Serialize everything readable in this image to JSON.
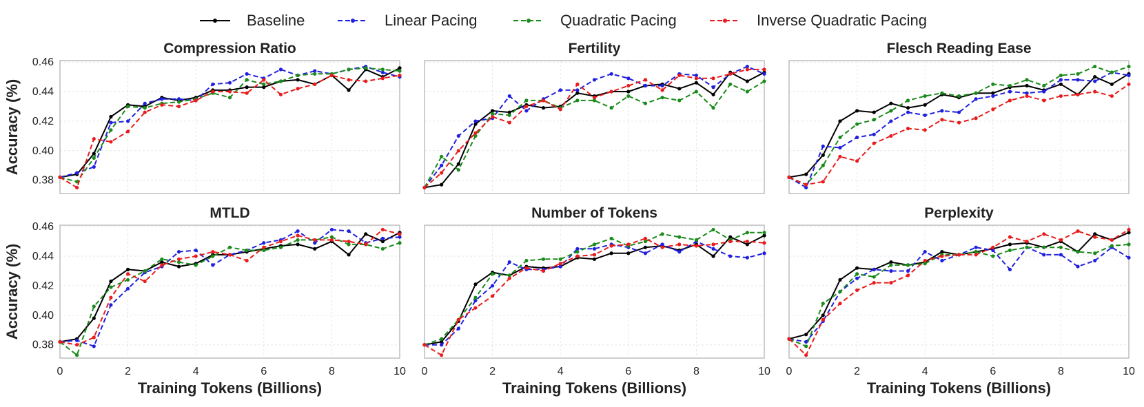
{
  "chart_data": {
    "type": "line",
    "legend": {
      "placement": "top-center",
      "entries": [
        "Baseline",
        "Linear Pacing",
        "Quadratic Pacing",
        "Inverse Quadratic Pacing"
      ]
    },
    "series_styles": [
      {
        "name": "Baseline",
        "color": "#000000",
        "dash": "solid"
      },
      {
        "name": "Linear Pacing",
        "color": "#1f1fe0",
        "dash": "dashed"
      },
      {
        "name": "Quadratic Pacing",
        "color": "#1a8a1a",
        "dash": "dashed"
      },
      {
        "name": "Inverse Quadratic Pacing",
        "color": "#e81c1c",
        "dash": "dashed"
      }
    ],
    "xlabel": "Training Tokens (Billions)",
    "ylabel": "Accuracy (%)",
    "xlim": [
      0,
      10
    ],
    "ylim": [
      0.371,
      0.461
    ],
    "xticks": [
      "0",
      "2",
      "4",
      "6",
      "8",
      "10"
    ],
    "yticks": [
      "0.38",
      "0.40",
      "0.42",
      "0.44",
      "0.46"
    ],
    "grid": true,
    "x": [
      0,
      0.5,
      1,
      1.5,
      2,
      2.5,
      3,
      3.5,
      4,
      4.5,
      5,
      5.5,
      6,
      6.5,
      7,
      7.5,
      8,
      8.5,
      9,
      9.5,
      10
    ],
    "panels": [
      {
        "title": "Compression Ratio",
        "series": [
          {
            "name": "Baseline",
            "values": [
              0.382,
              0.384,
              0.398,
              0.423,
              0.431,
              0.43,
              0.436,
              0.434,
              0.436,
              0.441,
              0.441,
              0.443,
              0.443,
              0.447,
              0.448,
              0.445,
              0.451,
              0.441,
              0.455,
              0.45,
              0.456
            ]
          },
          {
            "name": "Linear Pacing",
            "values": [
              0.382,
              0.385,
              0.389,
              0.419,
              0.42,
              0.432,
              0.435,
              0.435,
              0.434,
              0.445,
              0.446,
              0.452,
              0.449,
              0.455,
              0.451,
              0.454,
              0.452,
              0.455,
              0.457,
              0.453,
              0.45
            ]
          },
          {
            "name": "Quadratic Pacing",
            "values": [
              0.382,
              0.379,
              0.395,
              0.414,
              0.43,
              0.429,
              0.432,
              0.433,
              0.435,
              0.439,
              0.436,
              0.448,
              0.445,
              0.447,
              0.451,
              0.452,
              0.452,
              0.455,
              0.456,
              0.455,
              0.454
            ]
          },
          {
            "name": "Inverse Quadratic Pacing",
            "values": [
              0.382,
              0.375,
              0.408,
              0.406,
              0.413,
              0.426,
              0.431,
              0.43,
              0.434,
              0.44,
              0.44,
              0.439,
              0.448,
              0.438,
              0.442,
              0.445,
              0.451,
              0.448,
              0.447,
              0.449,
              0.451
            ]
          }
        ]
      },
      {
        "title": "Fertility",
        "series": [
          {
            "name": "Baseline",
            "values": [
              0.375,
              0.377,
              0.391,
              0.418,
              0.427,
              0.426,
              0.431,
              0.429,
              0.43,
              0.439,
              0.437,
              0.44,
              0.44,
              0.444,
              0.445,
              0.442,
              0.446,
              0.438,
              0.453,
              0.447,
              0.453
            ]
          },
          {
            "name": "Linear Pacing",
            "values": [
              0.375,
              0.39,
              0.41,
              0.42,
              0.422,
              0.437,
              0.427,
              0.435,
              0.441,
              0.441,
              0.448,
              0.452,
              0.449,
              0.444,
              0.444,
              0.452,
              0.451,
              0.443,
              0.452,
              0.457,
              0.452
            ]
          },
          {
            "name": "Quadratic Pacing",
            "values": [
              0.375,
              0.396,
              0.387,
              0.41,
              0.425,
              0.424,
              0.434,
              0.434,
              0.429,
              0.434,
              0.434,
              0.429,
              0.437,
              0.432,
              0.436,
              0.434,
              0.44,
              0.429,
              0.445,
              0.44,
              0.447
            ]
          },
          {
            "name": "Inverse Quadratic Pacing",
            "values": [
              0.375,
              0.385,
              0.4,
              0.412,
              0.423,
              0.419,
              0.43,
              0.434,
              0.428,
              0.445,
              0.436,
              0.44,
              0.444,
              0.448,
              0.441,
              0.451,
              0.449,
              0.449,
              0.452,
              0.455,
              0.455
            ]
          }
        ]
      },
      {
        "title": "Flesch Reading Ease",
        "series": [
          {
            "name": "Baseline",
            "values": [
              0.382,
              0.384,
              0.397,
              0.42,
              0.427,
              0.426,
              0.432,
              0.429,
              0.431,
              0.438,
              0.436,
              0.439,
              0.439,
              0.443,
              0.444,
              0.441,
              0.445,
              0.438,
              0.45,
              0.445,
              0.452
            ]
          },
          {
            "name": "Linear Pacing",
            "values": [
              0.382,
              0.375,
              0.403,
              0.402,
              0.409,
              0.411,
              0.42,
              0.426,
              0.424,
              0.427,
              0.426,
              0.435,
              0.437,
              0.44,
              0.439,
              0.44,
              0.448,
              0.448,
              0.447,
              0.453,
              0.451
            ]
          },
          {
            "name": "Quadratic Pacing",
            "values": [
              0.382,
              0.377,
              0.39,
              0.409,
              0.418,
              0.421,
              0.427,
              0.434,
              0.437,
              0.439,
              0.437,
              0.439,
              0.445,
              0.444,
              0.448,
              0.444,
              0.451,
              0.452,
              0.457,
              0.453,
              0.457
            ]
          },
          {
            "name": "Inverse Quadratic Pacing",
            "values": [
              0.382,
              0.377,
              0.379,
              0.396,
              0.393,
              0.405,
              0.41,
              0.415,
              0.414,
              0.421,
              0.419,
              0.422,
              0.428,
              0.434,
              0.437,
              0.434,
              0.437,
              0.438,
              0.44,
              0.437,
              0.445
            ]
          }
        ]
      },
      {
        "title": "MTLD",
        "series": [
          {
            "name": "Baseline",
            "values": [
              0.382,
              0.384,
              0.398,
              0.423,
              0.431,
              0.43,
              0.436,
              0.433,
              0.435,
              0.441,
              0.441,
              0.443,
              0.445,
              0.447,
              0.448,
              0.445,
              0.45,
              0.441,
              0.455,
              0.45,
              0.456
            ]
          },
          {
            "name": "Linear Pacing",
            "values": [
              0.382,
              0.383,
              0.379,
              0.407,
              0.418,
              0.429,
              0.433,
              0.443,
              0.444,
              0.434,
              0.441,
              0.444,
              0.449,
              0.451,
              0.457,
              0.449,
              0.458,
              0.457,
              0.449,
              0.452,
              0.453
            ]
          },
          {
            "name": "Quadratic Pacing",
            "values": [
              0.382,
              0.373,
              0.406,
              0.419,
              0.424,
              0.43,
              0.438,
              0.436,
              0.434,
              0.44,
              0.446,
              0.444,
              0.444,
              0.446,
              0.451,
              0.451,
              0.453,
              0.448,
              0.448,
              0.445,
              0.449
            ]
          },
          {
            "name": "Inverse Quadratic Pacing",
            "values": [
              0.382,
              0.38,
              0.385,
              0.412,
              0.428,
              0.423,
              0.434,
              0.438,
              0.44,
              0.443,
              0.441,
              0.437,
              0.446,
              0.45,
              0.454,
              0.451,
              0.451,
              0.45,
              0.448,
              0.458,
              0.455
            ]
          }
        ]
      },
      {
        "title": "Number of Tokens",
        "series": [
          {
            "name": "Baseline",
            "values": [
              0.38,
              0.382,
              0.396,
              0.421,
              0.429,
              0.427,
              0.433,
              0.432,
              0.433,
              0.439,
              0.438,
              0.442,
              0.442,
              0.446,
              0.447,
              0.444,
              0.448,
              0.44,
              0.453,
              0.448,
              0.454
            ]
          },
          {
            "name": "Linear Pacing",
            "values": [
              0.38,
              0.38,
              0.391,
              0.41,
              0.42,
              0.436,
              0.431,
              0.431,
              0.433,
              0.445,
              0.445,
              0.448,
              0.446,
              0.442,
              0.448,
              0.443,
              0.45,
              0.445,
              0.44,
              0.439,
              0.442
            ]
          },
          {
            "name": "Quadratic Pacing",
            "values": [
              0.38,
              0.384,
              0.397,
              0.412,
              0.428,
              0.427,
              0.437,
              0.438,
              0.438,
              0.443,
              0.448,
              0.452,
              0.447,
              0.45,
              0.455,
              0.453,
              0.451,
              0.458,
              0.451,
              0.456,
              0.456
            ]
          },
          {
            "name": "Inverse Quadratic Pacing",
            "values": [
              0.38,
              0.373,
              0.397,
              0.405,
              0.413,
              0.425,
              0.432,
              0.43,
              0.435,
              0.44,
              0.441,
              0.447,
              0.448,
              0.452,
              0.446,
              0.448,
              0.447,
              0.448,
              0.45,
              0.45,
              0.449
            ]
          }
        ]
      },
      {
        "title": "Perplexity",
        "series": [
          {
            "name": "Baseline",
            "values": [
              0.384,
              0.387,
              0.4,
              0.424,
              0.432,
              0.431,
              0.436,
              0.434,
              0.436,
              0.443,
              0.441,
              0.443,
              0.445,
              0.448,
              0.449,
              0.446,
              0.45,
              0.443,
              0.455,
              0.451,
              0.456
            ]
          },
          {
            "name": "Linear Pacing",
            "values": [
              0.384,
              0.382,
              0.396,
              0.416,
              0.425,
              0.431,
              0.43,
              0.43,
              0.443,
              0.437,
              0.441,
              0.446,
              0.444,
              0.431,
              0.446,
              0.441,
              0.441,
              0.433,
              0.437,
              0.446,
              0.439
            ]
          },
          {
            "name": "Quadratic Pacing",
            "values": [
              0.384,
              0.379,
              0.408,
              0.416,
              0.428,
              0.426,
              0.434,
              0.434,
              0.435,
              0.441,
              0.441,
              0.443,
              0.44,
              0.444,
              0.446,
              0.446,
              0.446,
              0.443,
              0.442,
              0.447,
              0.448
            ]
          },
          {
            "name": "Inverse Quadratic Pacing",
            "values": [
              0.384,
              0.373,
              0.397,
              0.408,
              0.417,
              0.422,
              0.422,
              0.427,
              0.437,
              0.44,
              0.441,
              0.441,
              0.446,
              0.453,
              0.45,
              0.455,
              0.451,
              0.457,
              0.453,
              0.451,
              0.458
            ]
          }
        ]
      }
    ]
  }
}
